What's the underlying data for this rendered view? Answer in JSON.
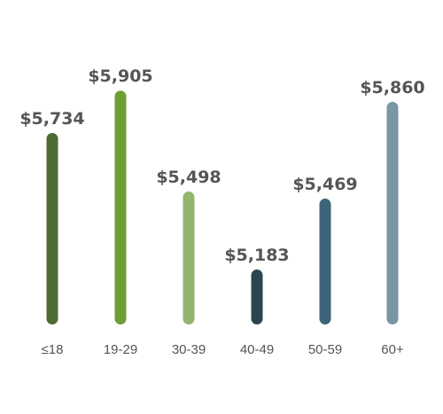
{
  "chart_data": {
    "type": "bar",
    "categories": [
      "≤18",
      "19-29",
      "30-39",
      "40-49",
      "50-59",
      "60+"
    ],
    "values": [
      5734,
      5905,
      5498,
      5183,
      5469,
      5860
    ],
    "value_labels": [
      "$5,734",
      "$5,905",
      "$5,498",
      "$5,183",
      "$5,469",
      "$5,860"
    ],
    "colors": [
      "#4e6b34",
      "#6e9e34",
      "#93b56e",
      "#2d4550",
      "#3d6478",
      "#7896a3"
    ],
    "title": "",
    "xlabel": "",
    "ylabel": "",
    "grid": false,
    "legend": "none"
  }
}
